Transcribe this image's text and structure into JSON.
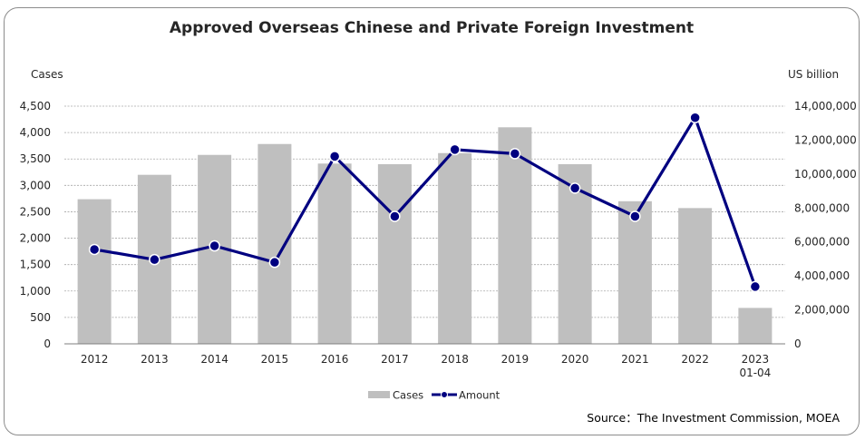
{
  "chart_data": {
    "type": "bar+line",
    "title": "Approved Overseas Chinese and Private Foreign Investment",
    "ylabel_left": "Cases",
    "ylabel_right": "US billion",
    "categories": [
      "2012",
      "2013",
      "2014",
      "2015",
      "2016",
      "2017",
      "2018",
      "2019",
      "2020",
      "2021",
      "2022",
      "2023\n01-04"
    ],
    "category_lines": [
      [
        "2012"
      ],
      [
        "2013"
      ],
      [
        "2014"
      ],
      [
        "2015"
      ],
      [
        "2016"
      ],
      [
        "2017"
      ],
      [
        "2018"
      ],
      [
        "2019"
      ],
      [
        "2020"
      ],
      [
        "2021"
      ],
      [
        "2022"
      ],
      [
        "2023",
        "01-04"
      ]
    ],
    "series": [
      {
        "name": "Cases",
        "type": "bar",
        "axis": "left",
        "color": "#bfbfbf",
        "values": [
          2738,
          3200,
          3577,
          3783,
          3413,
          3401,
          3611,
          4100,
          3401,
          2700,
          2570,
          680
        ]
      },
      {
        "name": "Amount",
        "type": "line",
        "axis": "right",
        "color": "#000080",
        "values": [
          5560000,
          4960000,
          5770000,
          4800000,
          11040000,
          7510000,
          11440000,
          11200000,
          9170000,
          7510000,
          13320000,
          3370000
        ]
      }
    ],
    "ylim_left": [
      0,
      4500
    ],
    "yticks_left": [
      0,
      500,
      1000,
      1500,
      2000,
      2500,
      3000,
      3500,
      4000,
      4500
    ],
    "ylim_right": [
      0,
      14000000
    ],
    "yticks_right": [
      0,
      2000000,
      4000000,
      6000000,
      8000000,
      10000000,
      12000000,
      14000000
    ],
    "grid": true,
    "legend_position": "bottom",
    "source": "Source：The Investment Commission, MOEA"
  }
}
